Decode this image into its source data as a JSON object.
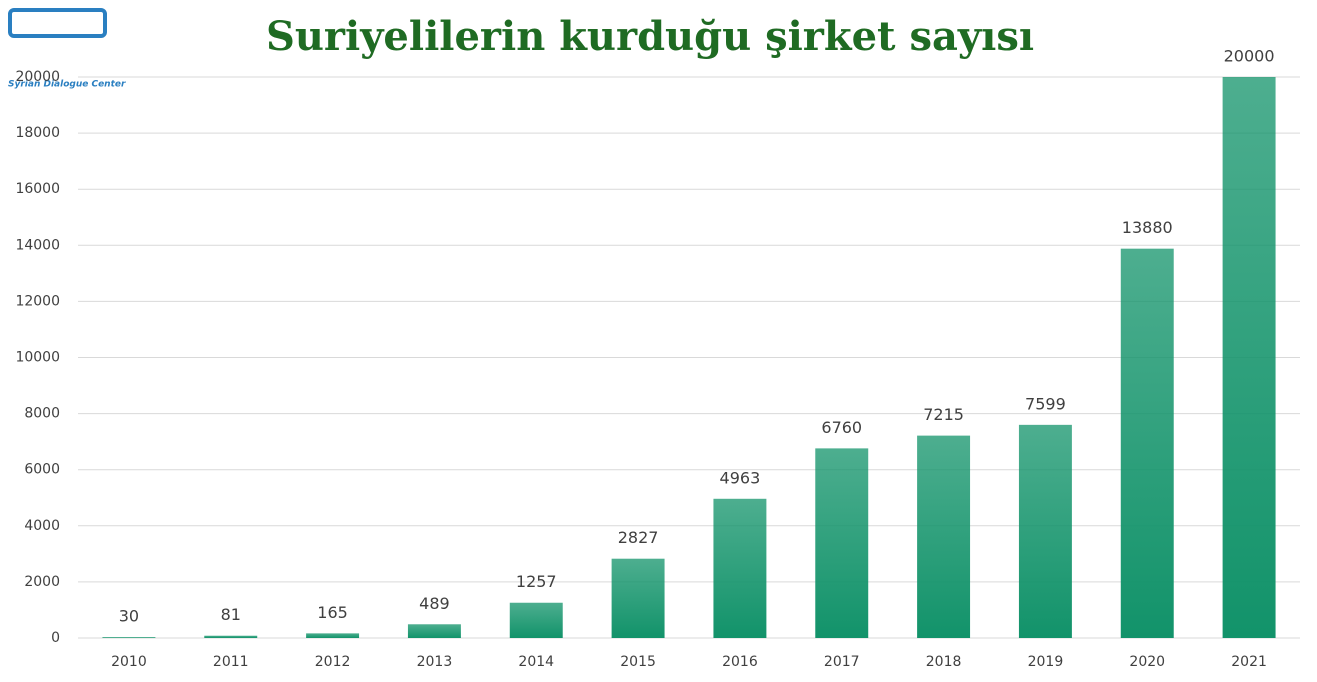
{
  "logo": {
    "text": "Syrian Dialogue Center"
  },
  "chart_data": {
    "type": "bar",
    "title": "Suriyelilerin kurduğu şirket sayısı",
    "categories": [
      "2010",
      "2011",
      "2012",
      "2013",
      "2014",
      "2015",
      "2016",
      "2017",
      "2018",
      "2019",
      "2020",
      "2021"
    ],
    "values": [
      30,
      81,
      165,
      489,
      1257,
      2827,
      4963,
      6760,
      7215,
      7599,
      13880,
      20000
    ],
    "color": "#12936a",
    "ylim": [
      0,
      20000
    ],
    "yticks": [
      0,
      2000,
      4000,
      6000,
      8000,
      10000,
      12000,
      14000,
      16000,
      18000,
      20000
    ],
    "grid": true
  }
}
